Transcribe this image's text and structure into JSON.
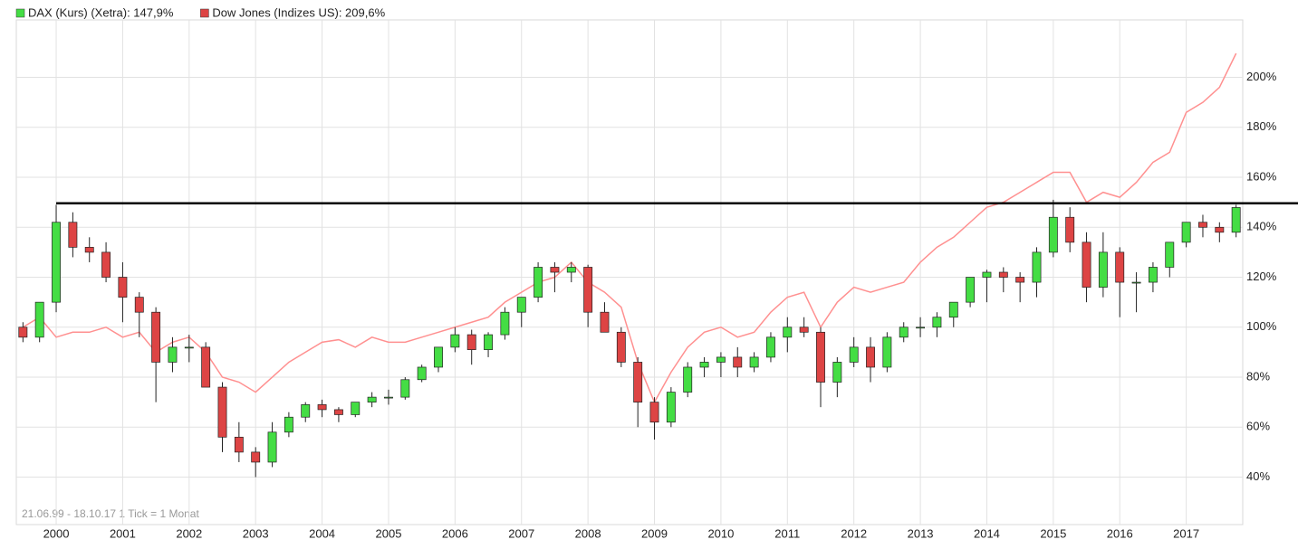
{
  "chart_data": {
    "type": "candlestick",
    "footnote": "21.06.99 - 18.10.17   1 Tick = 1 Monat",
    "xlim": [
      1999.4,
      2017.85
    ],
    "xticks": [
      2000,
      2001,
      2002,
      2003,
      2004,
      2005,
      2006,
      2007,
      2008,
      2009,
      2010,
      2011,
      2012,
      2013,
      2014,
      2015,
      2016,
      2017
    ],
    "ylim": [
      21,
      223
    ],
    "yticks": [
      {
        "value": 40,
        "label": "40%"
      },
      {
        "value": 60,
        "label": "60%"
      },
      {
        "value": 80,
        "label": "80%"
      },
      {
        "value": 100,
        "label": "100%"
      },
      {
        "value": 120,
        "label": "120%"
      },
      {
        "value": 140,
        "label": "140%"
      },
      {
        "value": 160,
        "label": "160%"
      },
      {
        "value": 180,
        "label": "180%"
      },
      {
        "value": 200,
        "label": "200%"
      }
    ],
    "grid": true,
    "hline": 149.6,
    "hline_color": "#000000",
    "x": [
      1999.5,
      1999.75,
      2000,
      2000.25,
      2000.5,
      2000.75,
      2001,
      2001.25,
      2001.5,
      2001.75,
      2002,
      2002.25,
      2002.5,
      2002.75,
      2003,
      2003.25,
      2003.5,
      2003.75,
      2004,
      2004.25,
      2004.5,
      2004.75,
      2005,
      2005.25,
      2005.5,
      2005.75,
      2006,
      2006.25,
      2006.5,
      2006.75,
      2007,
      2007.25,
      2007.5,
      2007.75,
      2008,
      2008.25,
      2008.5,
      2008.75,
      2009,
      2009.25,
      2009.5,
      2009.75,
      2010,
      2010.25,
      2010.5,
      2010.75,
      2011,
      2011.25,
      2011.5,
      2011.75,
      2012,
      2012.25,
      2012.5,
      2012.75,
      2013,
      2013.25,
      2013.5,
      2013.75,
      2014,
      2014.25,
      2014.5,
      2014.75,
      2015,
      2015.25,
      2015.5,
      2015.75,
      2016,
      2016.25,
      2016.5,
      2016.75,
      2017,
      2017.25,
      2017.5,
      2017.75
    ],
    "series": [
      {
        "name": "DAX (Kurs) (Xetra): 147,9%",
        "type": "candlestick",
        "color": "#44dd44",
        "up_color": "#44dd44",
        "down_color": "#dd4444",
        "open": [
          100,
          96,
          110,
          142,
          132,
          130,
          120,
          112,
          106,
          86,
          92,
          92,
          76,
          56,
          50,
          46,
          58,
          64,
          69,
          67,
          65,
          70,
          72,
          72,
          79,
          84,
          92,
          97,
          91,
          97,
          106,
          112,
          124,
          122,
          124,
          106,
          98,
          86,
          70,
          62,
          74,
          84,
          86,
          88,
          84,
          88,
          96,
          100,
          98,
          78,
          86,
          92,
          84,
          96,
          100,
          100,
          104,
          110,
          120,
          122,
          120,
          118,
          130,
          144,
          134,
          116,
          130,
          118,
          118,
          124,
          134,
          142,
          140,
          138
        ],
        "high": [
          102,
          110,
          149,
          146,
          136,
          134,
          126,
          114,
          108,
          96,
          97,
          94,
          78,
          62,
          52,
          62,
          66,
          70,
          71,
          68,
          70,
          74,
          75,
          80,
          85,
          92,
          100,
          99,
          98,
          108,
          112,
          126,
          126,
          126,
          125,
          110,
          100,
          88,
          72,
          76,
          86,
          88,
          90,
          92,
          90,
          98,
          104,
          104,
          100,
          88,
          96,
          96,
          98,
          102,
          104,
          106,
          110,
          120,
          123,
          124,
          122,
          132,
          151,
          148,
          138,
          138,
          132,
          122,
          126,
          134,
          142,
          145,
          142,
          149
        ],
        "low": [
          94,
          94,
          106,
          128,
          126,
          118,
          102,
          96,
          70,
          82,
          86,
          78,
          50,
          46,
          40,
          44,
          56,
          62,
          64,
          62,
          64,
          68,
          69,
          71,
          78,
          82,
          90,
          85,
          88,
          95,
          100,
          110,
          114,
          118,
          100,
          98,
          84,
          60,
          55,
          60,
          72,
          80,
          80,
          80,
          82,
          86,
          90,
          96,
          68,
          72,
          84,
          78,
          82,
          94,
          96,
          96,
          100,
          108,
          110,
          114,
          110,
          112,
          128,
          130,
          110,
          112,
          104,
          106,
          114,
          120,
          132,
          136,
          134,
          136
        ],
        "close": [
          96,
          110,
          142,
          132,
          130,
          120,
          112,
          106,
          86,
          92,
          92,
          76,
          56,
          50,
          46,
          58,
          64,
          69,
          67,
          65,
          70,
          72,
          72,
          79,
          84,
          92,
          97,
          91,
          97,
          106,
          112,
          124,
          122,
          124,
          106,
          98,
          86,
          70,
          62,
          74,
          84,
          86,
          88,
          84,
          88,
          96,
          100,
          98,
          78,
          86,
          92,
          84,
          96,
          100,
          100,
          104,
          110,
          120,
          122,
          120,
          118,
          130,
          144,
          134,
          116,
          130,
          118,
          118,
          124,
          134,
          142,
          140,
          138,
          147.9
        ]
      },
      {
        "name": "Dow Jones (Indizes US): 209,6%",
        "type": "line",
        "color": "#ff9090",
        "legend_color": "#dd4444",
        "values": [
          100,
          104,
          96,
          98,
          98,
          100,
          96,
          98,
          90,
          94,
          96,
          90,
          80,
          78,
          74,
          80,
          86,
          90,
          94,
          95,
          92,
          96,
          94,
          94,
          96,
          98,
          100,
          102,
          104,
          110,
          114,
          118,
          120,
          126,
          118,
          114,
          108,
          86,
          70,
          82,
          92,
          98,
          100,
          96,
          98,
          106,
          112,
          114,
          100,
          110,
          116,
          114,
          116,
          118,
          126,
          132,
          136,
          142,
          148,
          150,
          154,
          158,
          162,
          162,
          150,
          154,
          152,
          158,
          166,
          170,
          186,
          190,
          196,
          209.6
        ]
      }
    ]
  }
}
